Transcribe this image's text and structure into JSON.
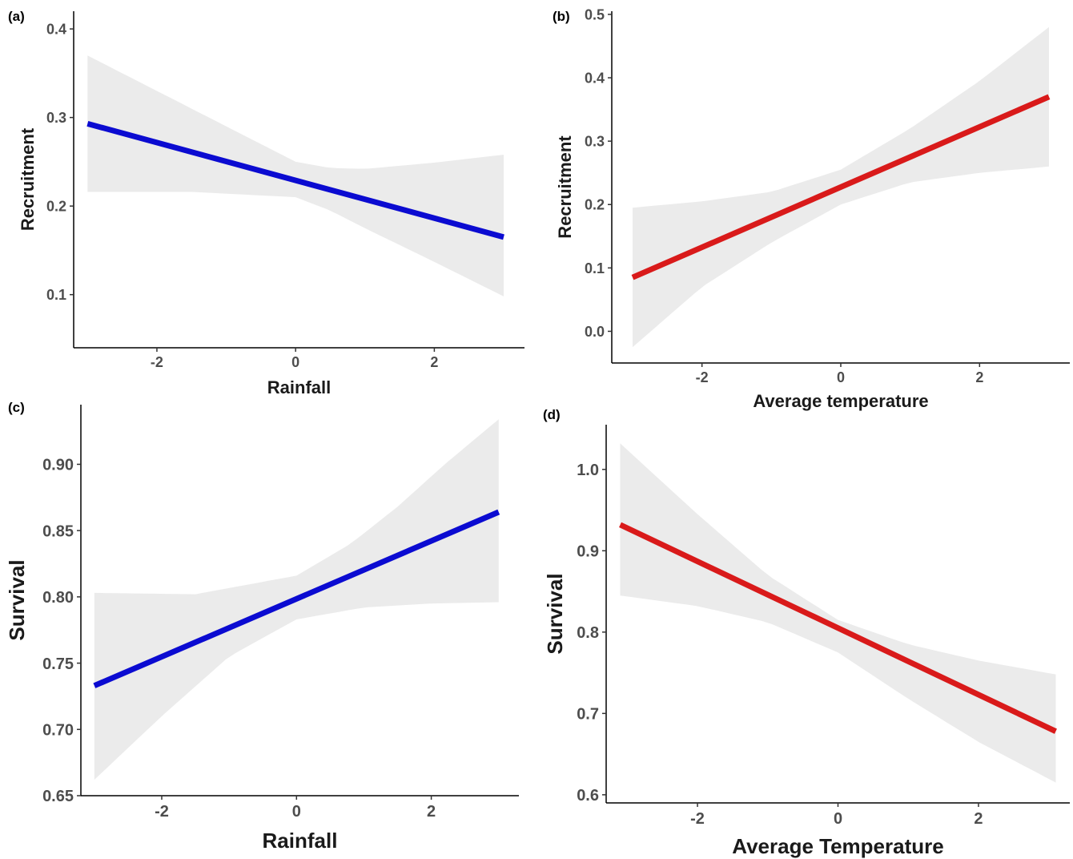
{
  "chart_data": [
    {
      "panel_label": "(a)",
      "type": "line",
      "xlabel": "Rainfall",
      "ylabel": "Recruitment",
      "xlim": [
        -3.2,
        3.3
      ],
      "ylim": [
        0.04,
        0.42
      ],
      "xticks": [
        -2,
        0,
        2
      ],
      "yticks": [
        0.1,
        0.2,
        0.3,
        0.4
      ],
      "ytick_labels": [
        "0.1",
        "0.2",
        "0.3",
        "0.4"
      ],
      "line_color": "#0b0bd1",
      "band_color": "#ebebeb",
      "fit": {
        "x": [
          -3.0,
          3.0
        ],
        "y": [
          0.293,
          0.165
        ]
      },
      "ci_upper": {
        "x": [
          -3.0,
          -1.5,
          0.0,
          0.5,
          1.0,
          2.0,
          3.0
        ],
        "y": [
          0.37,
          0.31,
          0.25,
          0.243,
          0.242,
          0.249,
          0.258
        ]
      },
      "ci_lower": {
        "x": [
          -3.0,
          -1.5,
          0.0,
          0.5,
          1.0,
          2.0,
          3.0
        ],
        "y": [
          0.216,
          0.216,
          0.21,
          0.195,
          0.175,
          0.137,
          0.098
        ]
      },
      "grid": false
    },
    {
      "panel_label": "(b)",
      "type": "line",
      "xlabel": "Average temperature",
      "ylabel": "Recruitment",
      "xlim": [
        -3.3,
        3.3
      ],
      "ylim": [
        -0.05,
        0.505
      ],
      "xticks": [
        -2,
        0,
        2
      ],
      "yticks": [
        0.0,
        0.1,
        0.2,
        0.3,
        0.4,
        0.5
      ],
      "ytick_labels": [
        "0.0",
        "0.1",
        "0.2",
        "0.3",
        "0.4",
        "0.5"
      ],
      "line_color": "#d91a1a",
      "band_color": "#ebebeb",
      "fit": {
        "x": [
          -3.0,
          3.0
        ],
        "y": [
          0.085,
          0.37
        ]
      },
      "ci_upper": {
        "x": [
          -3.0,
          -2.0,
          -1.0,
          0.0,
          1.0,
          2.0,
          3.0
        ],
        "y": [
          0.195,
          0.205,
          0.22,
          0.255,
          0.32,
          0.395,
          0.48
        ]
      },
      "ci_lower": {
        "x": [
          -3.0,
          -2.0,
          -1.0,
          0.0,
          1.0,
          2.0,
          3.0
        ],
        "y": [
          -0.025,
          0.07,
          0.14,
          0.2,
          0.235,
          0.25,
          0.26
        ]
      },
      "grid": false
    },
    {
      "panel_label": "(c)",
      "type": "line",
      "xlabel": "Rainfall",
      "ylabel": "Survival",
      "xlim": [
        -3.2,
        3.3
      ],
      "ylim": [
        0.65,
        0.945
      ],
      "xticks": [
        -2,
        0,
        2
      ],
      "yticks": [
        0.65,
        0.7,
        0.75,
        0.8,
        0.85,
        0.9
      ],
      "ytick_labels": [
        "0.65",
        "0.70",
        "0.75",
        "0.80",
        "0.85",
        "0.90"
      ],
      "line_color": "#0b0bd1",
      "band_color": "#ebebeb",
      "fit": {
        "x": [
          -3.0,
          3.0
        ],
        "y": [
          0.733,
          0.864
        ]
      },
      "ci_upper": {
        "x": [
          -3.0,
          -1.5,
          0.0,
          0.8,
          1.5,
          2.2,
          3.0
        ],
        "y": [
          0.803,
          0.802,
          0.816,
          0.84,
          0.868,
          0.9,
          0.934
        ]
      },
      "ci_lower": {
        "x": [
          -3.0,
          -2.0,
          -1.0,
          0.0,
          1.0,
          2.0,
          3.0
        ],
        "y": [
          0.662,
          0.71,
          0.755,
          0.783,
          0.792,
          0.795,
          0.796
        ]
      },
      "grid": false
    },
    {
      "panel_label": "(d)",
      "type": "line",
      "xlabel": "Average Temperature",
      "ylabel": "Survival",
      "xlim": [
        -3.3,
        3.3
      ],
      "ylim": [
        0.59,
        1.055
      ],
      "xticks": [
        -2,
        0,
        2
      ],
      "yticks": [
        0.6,
        0.7,
        0.8,
        0.9,
        1.0
      ],
      "ytick_labels": [
        "0.6",
        "0.7",
        "0.8",
        "0.9",
        "1.0"
      ],
      "line_color": "#d91a1a",
      "band_color": "#ebebeb",
      "fit": {
        "x": [
          -3.1,
          3.1
        ],
        "y": [
          0.932,
          0.678
        ]
      },
      "ci_upper": {
        "x": [
          -3.1,
          -2.0,
          -1.0,
          0.0,
          1.0,
          2.0,
          3.1
        ],
        "y": [
          1.032,
          0.945,
          0.87,
          0.815,
          0.785,
          0.765,
          0.748
        ]
      },
      "ci_lower": {
        "x": [
          -3.1,
          -2.0,
          -1.0,
          0.0,
          1.0,
          2.0,
          3.1
        ],
        "y": [
          0.845,
          0.832,
          0.812,
          0.775,
          0.718,
          0.665,
          0.615
        ]
      },
      "grid": false
    }
  ]
}
